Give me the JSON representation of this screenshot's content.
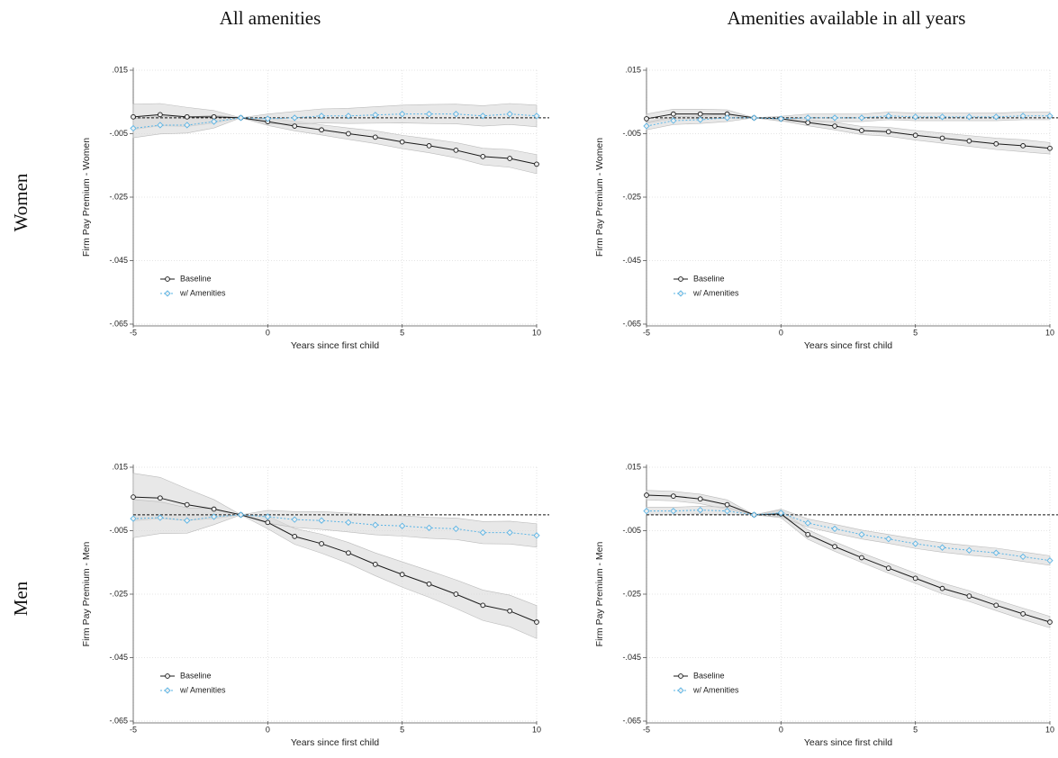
{
  "column_titles": [
    "All amenities",
    "Amenities available in all years"
  ],
  "row_labels": [
    "Women",
    "Men"
  ],
  "chart_data": [
    {
      "type": "line",
      "xlabel": "Years since first child",
      "ylabel": "Firm Pay Premium - Women",
      "x": [
        -5,
        -4,
        -3,
        -2,
        -1,
        0,
        1,
        2,
        3,
        4,
        5,
        6,
        7,
        8,
        9,
        10
      ],
      "xlim": [
        -5,
        10
      ],
      "xticks": [
        -5,
        0,
        5,
        10
      ],
      "ylim": [
        -0.065,
        0.015
      ],
      "yticks": [
        {
          "value": -0.065,
          "label": "-.065"
        },
        {
          "value": -0.045,
          "label": "-.045"
        },
        {
          "value": -0.025,
          "label": "-.025"
        },
        {
          "value": -0.005,
          "label": "-.005"
        },
        {
          "value": 0.015,
          "label": ".015"
        }
      ],
      "grid": true,
      "hline": 0,
      "legend": "lower left",
      "band_color": "#d9d9d9",
      "series": [
        {
          "name": "Baseline",
          "color": "#1a1a1a",
          "line_style": "solid",
          "marker": "circle",
          "values": [
            0.0003,
            0.001,
            0.0003,
            0.0003,
            0,
            -0.0012,
            -0.0026,
            -0.0038,
            -0.005,
            -0.0061,
            -0.0076,
            -0.0088,
            -0.0102,
            -0.0122,
            -0.0128,
            -0.0146
          ],
          "upper": [
            0.0043,
            0.0045,
            0.0033,
            0.0023,
            0,
            0,
            -0.0011,
            -0.0022,
            -0.0032,
            -0.0041,
            -0.0055,
            -0.0066,
            -0.0078,
            -0.0096,
            -0.01,
            -0.0116
          ],
          "lower": [
            -0.0037,
            -0.0025,
            -0.0027,
            -0.0017,
            0,
            -0.0024,
            -0.0041,
            -0.0054,
            -0.0068,
            -0.0081,
            -0.0097,
            -0.011,
            -0.0126,
            -0.0148,
            -0.0156,
            -0.0176
          ]
        },
        {
          "name": "w/ Amenities",
          "color": "#5ab4e5",
          "line_style": "dotted",
          "marker": "diamond",
          "values": [
            -0.0033,
            -0.0023,
            -0.0023,
            -0.0012,
            0,
            -0.0003,
            0,
            0.0006,
            0.0006,
            0.0009,
            0.0012,
            0.0012,
            0.0012,
            0.0006,
            0.0012,
            0.0006
          ],
          "upper": [
            -0.0003,
            0.0005,
            0.0002,
            0.0008,
            0,
            0.0012,
            0.002,
            0.0028,
            0.003,
            0.0035,
            0.004,
            0.0042,
            0.0043,
            0.0038,
            0.0045,
            0.004
          ],
          "lower": [
            -0.0063,
            -0.0051,
            -0.0048,
            -0.0032,
            0,
            -0.0018,
            -0.002,
            -0.0016,
            -0.0018,
            -0.0017,
            -0.0016,
            -0.0018,
            -0.0019,
            -0.0026,
            -0.0021,
            -0.0028
          ]
        }
      ]
    },
    {
      "type": "line",
      "xlabel": "Years since first child",
      "ylabel": "Firm Pay Premium - Women",
      "x": [
        -5,
        -4,
        -3,
        -2,
        -1,
        0,
        1,
        2,
        3,
        4,
        5,
        6,
        7,
        8,
        9,
        10
      ],
      "xlim": [
        -5,
        10
      ],
      "xticks": [
        -5,
        0,
        5,
        10
      ],
      "ylim": [
        -0.065,
        0.015
      ],
      "yticks": [
        {
          "value": -0.065,
          "label": "-.065"
        },
        {
          "value": -0.045,
          "label": "-.045"
        },
        {
          "value": -0.025,
          "label": "-.025"
        },
        {
          "value": -0.005,
          "label": "-.005"
        },
        {
          "value": 0.015,
          "label": ".015"
        }
      ],
      "grid": true,
      "hline": 0,
      "legend": "lower left",
      "band_color": "#d9d9d9",
      "series": [
        {
          "name": "Baseline",
          "color": "#1a1a1a",
          "line_style": "solid",
          "marker": "circle",
          "values": [
            -0.0003,
            0.0012,
            0.0012,
            0.0012,
            0,
            -0.0003,
            -0.0015,
            -0.0026,
            -0.004,
            -0.0044,
            -0.0055,
            -0.0064,
            -0.0073,
            -0.0082,
            -0.0088,
            -0.0096
          ],
          "upper": [
            0.0012,
            0.0027,
            0.0027,
            0.0025,
            0,
            0.0003,
            -0.0005,
            -0.0014,
            -0.0027,
            -0.003,
            -0.004,
            -0.0048,
            -0.0056,
            -0.0064,
            -0.0069,
            -0.0078
          ],
          "lower": [
            -0.0018,
            -0.0003,
            -0.0003,
            -0.0001,
            0,
            -0.0009,
            -0.0025,
            -0.0038,
            -0.0053,
            -0.0058,
            -0.007,
            -0.008,
            -0.009,
            -0.01,
            -0.0107,
            -0.0114
          ]
        },
        {
          "name": "w/ Amenities",
          "color": "#5ab4e5",
          "line_style": "dotted",
          "marker": "diamond",
          "values": [
            -0.0026,
            -0.0009,
            -0.0006,
            0,
            0,
            -0.0003,
            0,
            0,
            0,
            0.0006,
            0.0003,
            0.0003,
            0.0003,
            0.0003,
            0.0006,
            0.0006
          ],
          "upper": [
            -0.0014,
            0.0003,
            0.0006,
            0.0012,
            0,
            0.0005,
            0.0012,
            0.0012,
            0.0012,
            0.0018,
            0.0015,
            0.0015,
            0.0015,
            0.0015,
            0.0018,
            0.0018
          ],
          "lower": [
            -0.0038,
            -0.0021,
            -0.0018,
            -0.0012,
            0,
            -0.0011,
            -0.0012,
            -0.0012,
            -0.0012,
            -0.0006,
            -0.0009,
            -0.0009,
            -0.0009,
            -0.0009,
            -0.0006,
            -0.0006
          ]
        }
      ]
    },
    {
      "type": "line",
      "xlabel": "Years since first child",
      "ylabel": "Firm Pay Premium - Men",
      "x": [
        -5,
        -4,
        -3,
        -2,
        -1,
        0,
        1,
        2,
        3,
        4,
        5,
        6,
        7,
        8,
        9,
        10
      ],
      "xlim": [
        -5,
        10
      ],
      "xticks": [
        -5,
        0,
        5,
        10
      ],
      "ylim": [
        -0.065,
        0.015
      ],
      "yticks": [
        {
          "value": -0.065,
          "label": "-.065"
        },
        {
          "value": -0.045,
          "label": "-.045"
        },
        {
          "value": -0.025,
          "label": "-.025"
        },
        {
          "value": -0.005,
          "label": "-.005"
        },
        {
          "value": 0.015,
          "label": ".015"
        }
      ],
      "grid": true,
      "hline": 0,
      "legend": "lower left",
      "band_color": "#d9d9d9",
      "series": [
        {
          "name": "Baseline",
          "color": "#1a1a1a",
          "line_style": "solid",
          "marker": "circle",
          "values": [
            0.0056,
            0.0053,
            0.0032,
            0.0018,
            0,
            -0.0024,
            -0.0068,
            -0.0091,
            -0.012,
            -0.0156,
            -0.0188,
            -0.0218,
            -0.025,
            -0.0285,
            -0.0303,
            -0.0338
          ],
          "upper": [
            0.0131,
            0.0118,
            0.0082,
            0.0048,
            0,
            -0.0004,
            -0.0043,
            -0.0061,
            -0.0087,
            -0.012,
            -0.0148,
            -0.0176,
            -0.0205,
            -0.0237,
            -0.0253,
            -0.0286
          ],
          "lower": [
            -0.0019,
            -0.0012,
            -0.0018,
            -0.0012,
            0,
            -0.0044,
            -0.0093,
            -0.0121,
            -0.0153,
            -0.0192,
            -0.0228,
            -0.026,
            -0.0295,
            -0.0333,
            -0.0353,
            -0.039
          ]
        },
        {
          "name": "w/ Amenities",
          "color": "#5ab4e5",
          "line_style": "dotted",
          "marker": "diamond",
          "values": [
            -0.0012,
            -0.0009,
            -0.0018,
            -0.0006,
            0,
            -0.0006,
            -0.0015,
            -0.0018,
            -0.0024,
            -0.0032,
            -0.0035,
            -0.0041,
            -0.0044,
            -0.0056,
            -0.0056,
            -0.0065
          ],
          "upper": [
            0.0048,
            0.0041,
            0.0022,
            0.0019,
            0,
            0.0014,
            0.001,
            0.001,
            0.0006,
            -0.0001,
            -0.0003,
            -0.0008,
            -0.001,
            -0.0021,
            -0.002,
            -0.0028
          ],
          "lower": [
            -0.0072,
            -0.0059,
            -0.0058,
            -0.0031,
            0,
            -0.0026,
            -0.004,
            -0.0046,
            -0.0054,
            -0.0063,
            -0.0067,
            -0.0074,
            -0.0078,
            -0.0091,
            -0.0092,
            -0.0102
          ]
        }
      ]
    },
    {
      "type": "line",
      "xlabel": "Years since first child",
      "ylabel": "Firm Pay Premium - Men",
      "x": [
        -5,
        -4,
        -3,
        -2,
        -1,
        0,
        1,
        2,
        3,
        4,
        5,
        6,
        7,
        8,
        9,
        10
      ],
      "xlim": [
        -5,
        10
      ],
      "xticks": [
        -5,
        0,
        5,
        10
      ],
      "ylim": [
        -0.065,
        0.015
      ],
      "yticks": [
        {
          "value": -0.065,
          "label": "-.065"
        },
        {
          "value": -0.045,
          "label": "-.045"
        },
        {
          "value": -0.025,
          "label": "-.025"
        },
        {
          "value": -0.005,
          "label": "-.005"
        },
        {
          "value": 0.015,
          "label": ".015"
        }
      ],
      "grid": true,
      "hline": 0,
      "legend": "lower left",
      "band_color": "#d9d9d9",
      "series": [
        {
          "name": "Baseline",
          "color": "#1a1a1a",
          "line_style": "solid",
          "marker": "circle",
          "values": [
            0.0062,
            0.0059,
            0.005,
            0.0032,
            0,
            0.0003,
            -0.0062,
            -0.01,
            -0.0135,
            -0.0168,
            -0.02,
            -0.0232,
            -0.0256,
            -0.0285,
            -0.0312,
            -0.0338
          ],
          "upper": [
            0.0077,
            0.0074,
            0.0065,
            0.0047,
            0,
            0.0015,
            -0.0047,
            -0.0085,
            -0.012,
            -0.0152,
            -0.0184,
            -0.0215,
            -0.0239,
            -0.0268,
            -0.0294,
            -0.032
          ],
          "lower": [
            0.0047,
            0.0044,
            0.0035,
            0.0017,
            0,
            -0.0009,
            -0.0077,
            -0.0115,
            -0.015,
            -0.0184,
            -0.0216,
            -0.0249,
            -0.0273,
            -0.0302,
            -0.033,
            -0.0356
          ]
        },
        {
          "name": "w/ Amenities",
          "color": "#5ab4e5",
          "line_style": "dotted",
          "marker": "diamond",
          "values": [
            0.0012,
            0.0012,
            0.0015,
            0.0012,
            0,
            0.0006,
            -0.0026,
            -0.0044,
            -0.0062,
            -0.0076,
            -0.0091,
            -0.0103,
            -0.0112,
            -0.012,
            -0.0132,
            -0.0144
          ],
          "upper": [
            0.0024,
            0.0024,
            0.0027,
            0.0024,
            0,
            0.0018,
            -0.0013,
            -0.003,
            -0.0048,
            -0.0062,
            -0.0076,
            -0.0088,
            -0.0097,
            -0.0105,
            -0.0117,
            -0.0129
          ],
          "lower": [
            0,
            0,
            0.0003,
            0,
            0,
            -0.0006,
            -0.0039,
            -0.0058,
            -0.0076,
            -0.009,
            -0.0106,
            -0.0118,
            -0.0127,
            -0.0135,
            -0.0147,
            -0.0159
          ]
        }
      ]
    }
  ]
}
